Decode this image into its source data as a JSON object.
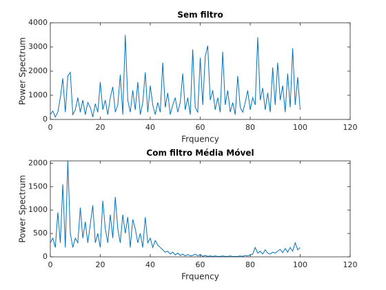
{
  "chart_data": [
    {
      "type": "line",
      "title": "Sem filtro",
      "xlabel": "Frquency",
      "ylabel": "Power Spectrum",
      "xlim": [
        0,
        120
      ],
      "xticks": [
        0,
        20,
        40,
        60,
        80,
        100,
        120
      ],
      "ylim": [
        0,
        4000
      ],
      "yticks": [
        0,
        1000,
        2000,
        3000,
        4000
      ],
      "x": [
        0,
        1,
        2,
        3,
        4,
        5,
        6,
        7,
        8,
        9,
        10,
        11,
        12,
        13,
        14,
        15,
        16,
        17,
        18,
        19,
        20,
        21,
        22,
        23,
        24,
        25,
        26,
        27,
        28,
        29,
        30,
        31,
        32,
        33,
        34,
        35,
        36,
        37,
        38,
        39,
        40,
        41,
        42,
        43,
        44,
        45,
        46,
        47,
        48,
        49,
        50,
        51,
        52,
        53,
        54,
        55,
        56,
        57,
        58,
        59,
        60,
        61,
        62,
        63,
        64,
        65,
        66,
        67,
        68,
        69,
        70,
        71,
        72,
        73,
        74,
        75,
        76,
        77,
        78,
        79,
        80,
        81,
        82,
        83,
        84,
        85,
        86,
        87,
        88,
        89,
        90,
        91,
        92,
        93,
        94,
        95,
        96,
        97,
        98,
        99,
        100
      ],
      "series": [
        {
          "name": "Sem filtro",
          "color": "#0072bd",
          "values": [
            200,
            350,
            100,
            300,
            900,
            1700,
            300,
            1800,
            1950,
            200,
            400,
            900,
            300,
            800,
            200,
            700,
            500,
            100,
            650,
            300,
            1550,
            400,
            800,
            200,
            900,
            1350,
            300,
            600,
            1850,
            200,
            3500,
            800,
            300,
            1200,
            400,
            1550,
            200,
            700,
            1950,
            300,
            1400,
            600,
            200,
            700,
            300,
            2350,
            500,
            1100,
            200,
            600,
            900,
            300,
            700,
            1900,
            400,
            900,
            200,
            2900,
            500,
            300,
            2550,
            600,
            2600,
            3050,
            800,
            1200,
            400,
            900,
            300,
            2800,
            600,
            1200,
            300,
            700,
            200,
            1800,
            500,
            300,
            700,
            1200,
            400,
            900,
            600,
            3400,
            800,
            1300,
            400,
            1100,
            300,
            2150,
            600,
            2350,
            800,
            1400,
            300,
            1900,
            500,
            2950,
            600,
            1750,
            400
          ]
        }
      ]
    },
    {
      "type": "line",
      "title": "Com filtro Média Móvel",
      "xlabel": "Frquency",
      "ylabel": "Power Spectrum",
      "xlim": [
        0,
        120
      ],
      "xticks": [
        0,
        20,
        40,
        60,
        80,
        100,
        120
      ],
      "ylim": [
        0,
        2050
      ],
      "yticks": [
        0,
        500,
        1000,
        1500,
        2000
      ],
      "x": [
        0,
        1,
        2,
        3,
        4,
        5,
        6,
        7,
        8,
        9,
        10,
        11,
        12,
        13,
        14,
        15,
        16,
        17,
        18,
        19,
        20,
        21,
        22,
        23,
        24,
        25,
        26,
        27,
        28,
        29,
        30,
        31,
        32,
        33,
        34,
        35,
        36,
        37,
        38,
        39,
        40,
        41,
        42,
        43,
        44,
        45,
        46,
        47,
        48,
        49,
        50,
        51,
        52,
        53,
        54,
        55,
        56,
        57,
        58,
        59,
        60,
        61,
        62,
        63,
        64,
        65,
        66,
        67,
        68,
        69,
        70,
        71,
        72,
        73,
        74,
        75,
        76,
        77,
        78,
        79,
        80,
        81,
        82,
        83,
        84,
        85,
        86,
        87,
        88,
        89,
        90,
        91,
        92,
        93,
        94,
        95,
        96,
        97,
        98,
        99,
        100
      ],
      "series": [
        {
          "name": "Com filtro Média Móvel",
          "color": "#0072bd",
          "values": [
            300,
            400,
            200,
            950,
            300,
            1550,
            200,
            2050,
            500,
            200,
            400,
            300,
            1050,
            400,
            750,
            300,
            700,
            1100,
            300,
            500,
            200,
            1200,
            600,
            300,
            900,
            400,
            1280,
            600,
            300,
            900,
            500,
            850,
            200,
            800,
            600,
            300,
            500,
            200,
            850,
            300,
            400,
            200,
            350,
            250,
            200,
            150,
            100,
            120,
            60,
            100,
            40,
            80,
            30,
            60,
            20,
            50,
            20,
            30,
            60,
            20,
            50,
            10,
            30,
            10,
            20,
            10,
            20,
            10,
            10,
            20,
            10,
            10,
            20,
            10,
            10,
            10,
            20,
            10,
            30,
            20,
            40,
            60,
            200,
            80,
            120,
            60,
            150,
            80,
            60,
            100,
            80,
            120,
            160,
            90,
            180,
            100,
            200,
            120,
            300,
            150,
            200
          ]
        }
      ]
    }
  ]
}
